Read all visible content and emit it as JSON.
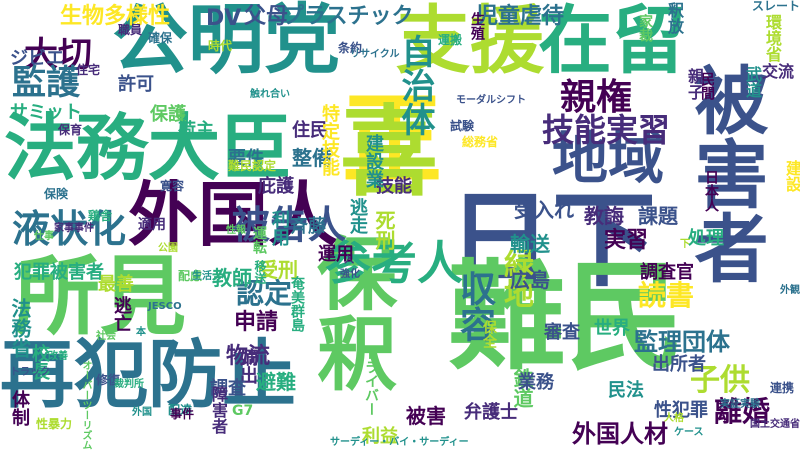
{
  "palette": [
    "#440154",
    "#472c7a",
    "#3b528b",
    "#2c728e",
    "#21918c",
    "#28ae80",
    "#5ec962",
    "#addc30",
    "#fde725"
  ],
  "words": [
    {
      "text": "公明党"
    },
    {
      "text": "支援"
    },
    {
      "text": "在留"
    },
    {
      "text": "法務大臣"
    },
    {
      "text": "正"
    },
    {
      "text": "喜"
    },
    {
      "text": "被害者"
    },
    {
      "text": "地域"
    },
    {
      "text": "外国人"
    },
    {
      "text": "日下"
    },
    {
      "text": "所見"
    },
    {
      "text": "保釈"
    },
    {
      "text": "難民"
    },
    {
      "text": "再犯防止"
    },
    {
      "text": "被告人"
    },
    {
      "text": "参考人"
    },
    {
      "text": "収容"
    },
    {
      "text": "液状化"
    },
    {
      "text": "大切"
    },
    {
      "text": "監護"
    },
    {
      "text": "技能実習"
    },
    {
      "text": "親権"
    },
    {
      "text": "自治体"
    },
    {
      "text": "生物多様性"
    },
    {
      "text": "DV"
    },
    {
      "text": "父母"
    },
    {
      "text": "プラスチック"
    },
    {
      "text": "児童虐待"
    },
    {
      "text": "認定"
    },
    {
      "text": "緑地"
    },
    {
      "text": "読書"
    },
    {
      "text": "子供"
    },
    {
      "text": "離婚"
    },
    {
      "text": "広島"
    },
    {
      "text": "監理団体"
    },
    {
      "text": "外国人材"
    },
    {
      "text": "犯罪被害者"
    },
    {
      "text": "法務省"
    },
    {
      "text": "申請"
    },
    {
      "text": "物流"
    },
    {
      "text": "受入れ"
    },
    {
      "text": "実習"
    },
    {
      "text": "教誨"
    },
    {
      "text": "課題"
    },
    {
      "text": "輸送"
    },
    {
      "text": "教師"
    },
    {
      "text": "受刑"
    },
    {
      "text": "要件"
    },
    {
      "text": "整備"
    },
    {
      "text": "住民"
    },
    {
      "text": "技能"
    },
    {
      "text": "特定技能"
    },
    {
      "text": "建設業"
    },
    {
      "text": "許可"
    },
    {
      "text": "サミット"
    },
    {
      "text": "保護"
    },
    {
      "text": "荷主"
    },
    {
      "text": "庇護"
    },
    {
      "text": "斉藤"
    },
    {
      "text": "死刑"
    },
    {
      "text": "逃走"
    },
    {
      "text": "利用"
    },
    {
      "text": "運用"
    },
    {
      "text": "調査官"
    },
    {
      "text": "審査"
    },
    {
      "text": "世界"
    },
    {
      "text": "民法"
    },
    {
      "text": "鉄道"
    },
    {
      "text": "業務"
    },
    {
      "text": "出所者"
    },
    {
      "text": "性犯罪"
    },
    {
      "text": "弁護士"
    },
    {
      "text": "被害"
    },
    {
      "text": "利益"
    },
    {
      "text": "避難"
    },
    {
      "text": "嫡出"
    },
    {
      "text": "調査"
    },
    {
      "text": "逃亡"
    },
    {
      "text": "最善"
    },
    {
      "text": "校長"
    },
    {
      "text": "体制"
    },
    {
      "text": "ジビエ"
    },
    {
      "text": "生殖"
    },
    {
      "text": "釈放"
    },
    {
      "text": "家裁"
    },
    {
      "text": "環境省"
    },
    {
      "text": "交流"
    },
    {
      "text": "武道"
    },
    {
      "text": "建設"
    },
    {
      "text": "日本人"
    },
    {
      "text": "民間"
    },
    {
      "text": "処理"
    },
    {
      "text": "保全"
    },
    {
      "text": "奄美群島"
    },
    {
      "text": "障害者"
    },
    {
      "text": "ドライバー"
    },
    {
      "text": "G7"
    },
    {
      "text": "適用"
    },
    {
      "text": "運転"
    },
    {
      "text": "親子"
    },
    {
      "text": "移送"
    },
    {
      "text": "スレート"
    },
    {
      "text": "職員"
    },
    {
      "text": "確保"
    },
    {
      "text": "難民認定"
    },
    {
      "text": "寛容"
    },
    {
      "text": "時代"
    },
    {
      "text": "鶏舎"
    },
    {
      "text": "性暴力"
    },
    {
      "text": "試験"
    },
    {
      "text": "運搬"
    },
    {
      "text": "住宅"
    },
    {
      "text": "修復"
    },
    {
      "text": "配達"
    },
    {
      "text": "配慮"
    },
    {
      "text": "総務省"
    },
    {
      "text": "保険"
    },
    {
      "text": "事件"
    },
    {
      "text": "条約"
    },
    {
      "text": "保育"
    },
    {
      "text": "リサイクル"
    },
    {
      "text": "モーダルシフト"
    },
    {
      "text": "触れ合い"
    },
    {
      "text": "サーディー・バイ・サーディー"
    },
    {
      "text": "オーバーツーリズム"
    },
    {
      "text": "トラック"
    },
    {
      "text": "ケース"
    },
    {
      "text": "人格"
    },
    {
      "text": "国土交通省"
    },
    {
      "text": "実証実験"
    },
    {
      "text": "裁判所"
    },
    {
      "text": "社会"
    },
    {
      "text": "生活"
    },
    {
      "text": "外国"
    },
    {
      "text": "公園"
    },
    {
      "text": "仕事"
    },
    {
      "text": "家事事件"
    },
    {
      "text": "強化"
    },
    {
      "text": "性報"
    },
    {
      "text": "連携"
    },
    {
      "text": "外観"
    },
    {
      "text": "下"
    },
    {
      "text": "入"
    },
    {
      "text": "本"
    },
    {
      "text": "JESCO"
    },
    {
      "text": "改善"
    },
    {
      "text": "向上"
    },
    {
      "text": "提供"
    }
  ]
}
